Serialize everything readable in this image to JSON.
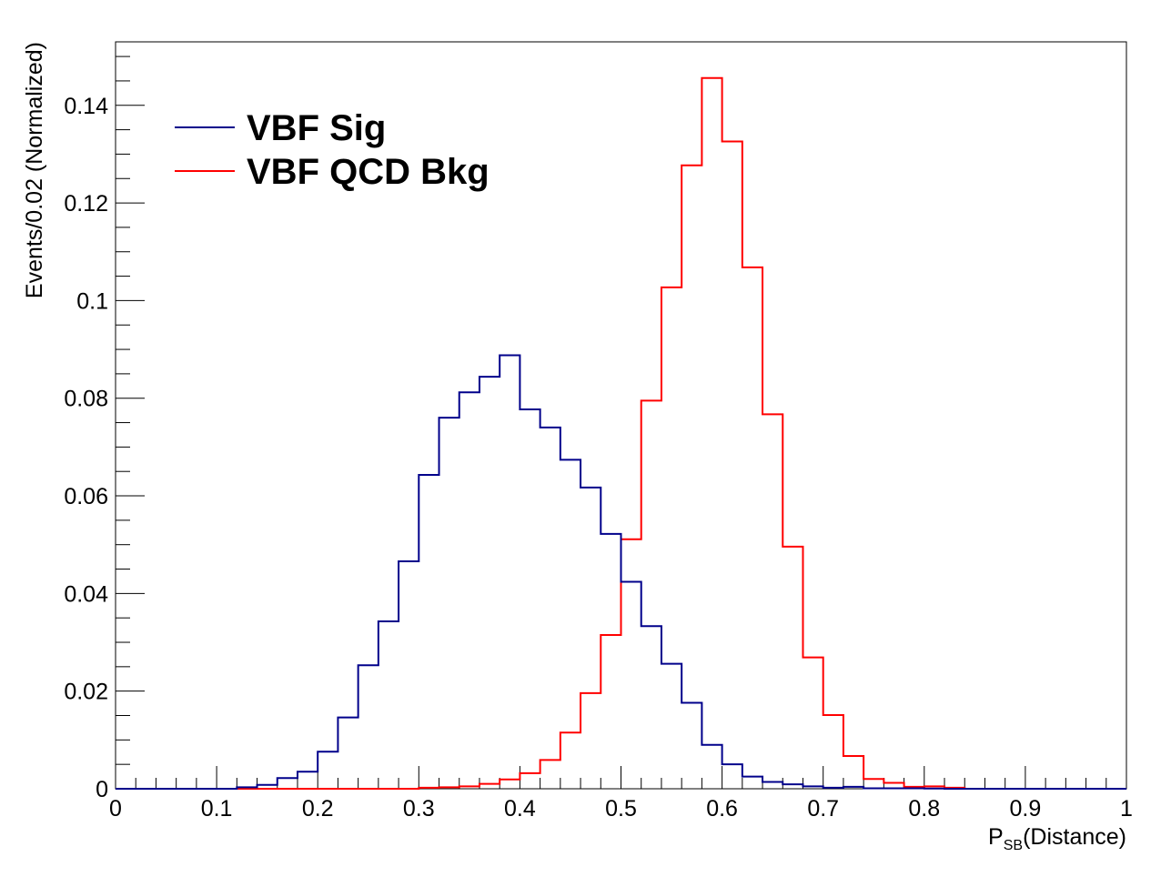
{
  "chart_data": {
    "type": "line",
    "title": "",
    "xlabel_main": "P",
    "xlabel_sub": "SB",
    "xlabel_rest": "(Distance)",
    "ylabel": "Events/0.02 (Normalized)",
    "xlim": [
      0,
      1
    ],
    "ylim": [
      0,
      0.153
    ],
    "bin_width": 0.02,
    "x_ticks": [
      "0",
      "0.1",
      "0.2",
      "0.3",
      "0.4",
      "0.5",
      "0.6",
      "0.7",
      "0.8",
      "0.9",
      "1"
    ],
    "y_ticks": [
      "0",
      "0.02",
      "0.04",
      "0.06",
      "0.08",
      "0.1",
      "0.12",
      "0.14"
    ],
    "grid": false,
    "legend_position": "top-left",
    "series": [
      {
        "name": "VBF Sig",
        "color": "#00008b",
        "values": [
          0,
          0,
          0,
          0,
          0,
          0,
          0.0003,
          0.0008,
          0.0022,
          0.0035,
          0.0076,
          0.0146,
          0.0253,
          0.0343,
          0.0466,
          0.0643,
          0.076,
          0.0812,
          0.0844,
          0.0888,
          0.0777,
          0.074,
          0.0674,
          0.0617,
          0.0522,
          0.0424,
          0.0333,
          0.0256,
          0.0176,
          0.009,
          0.005,
          0.0025,
          0.0014,
          0.0009,
          0.0005,
          0.0002,
          0.0004,
          0.0001,
          0.0001,
          0.0001,
          5e-05,
          0,
          0,
          0,
          0,
          0,
          0,
          0,
          0,
          0
        ]
      },
      {
        "name": "VBF QCD Bkg",
        "color": "#ff0000",
        "values": [
          0,
          0,
          0,
          0,
          0,
          0,
          0,
          0,
          0,
          0,
          0,
          0,
          0,
          0,
          0,
          0.0002,
          0.0003,
          0.0005,
          0.001,
          0.0019,
          0.0032,
          0.0059,
          0.0115,
          0.0196,
          0.0315,
          0.0511,
          0.0795,
          0.1027,
          0.1277,
          0.1456,
          0.1326,
          0.1068,
          0.0767,
          0.0496,
          0.0269,
          0.0151,
          0.0067,
          0.002,
          0.0012,
          0.0004,
          0.0005,
          0.0002,
          0,
          0,
          0,
          0,
          0,
          0,
          0,
          0
        ]
      }
    ]
  }
}
